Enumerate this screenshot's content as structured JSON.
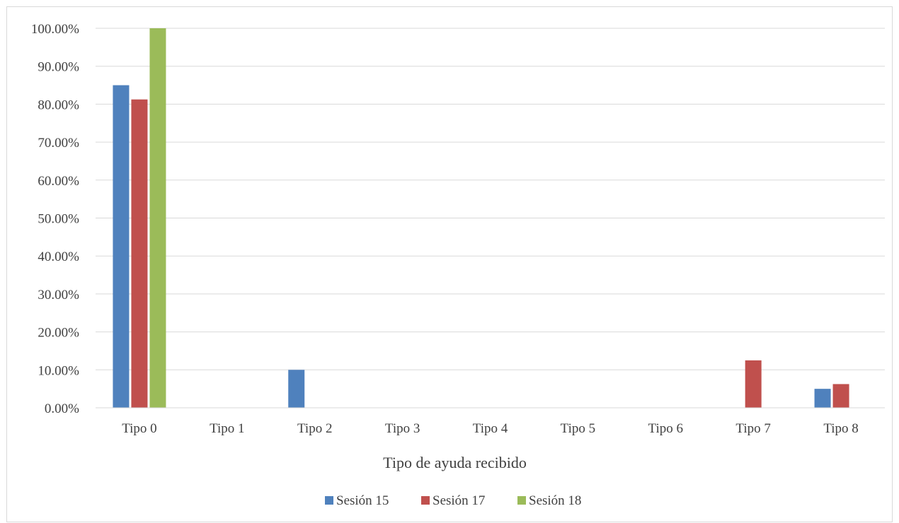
{
  "chart_data": {
    "type": "bar",
    "title": "",
    "xlabel": "Tipo de ayuda recibido",
    "ylabel": "",
    "categories": [
      "Tipo 0",
      "Tipo 1",
      "Tipo 2",
      "Tipo 3",
      "Tipo 4",
      "Tipo 5",
      "Tipo 6",
      "Tipo 7",
      "Tipo 8"
    ],
    "series": [
      {
        "name": "Sesión 15",
        "color": "#4f81bd",
        "values": [
          0.85,
          0,
          0.1,
          0,
          0,
          0,
          0,
          0,
          0.05
        ]
      },
      {
        "name": "Sesión 17",
        "color": "#c0504d",
        "values": [
          0.8125,
          0,
          0,
          0,
          0,
          0,
          0,
          0.125,
          0.0625
        ]
      },
      {
        "name": "Sesión 18",
        "color": "#9bbb59",
        "values": [
          1.0,
          0,
          0,
          0,
          0,
          0,
          0,
          0,
          0
        ]
      }
    ],
    "ylim": [
      0,
      1
    ],
    "yticks": [
      0,
      0.1,
      0.2,
      0.3,
      0.4,
      0.5,
      0.6,
      0.7,
      0.8,
      0.9,
      1.0
    ],
    "ytick_labels": [
      "0.00%",
      "10.00%",
      "20.00%",
      "30.00%",
      "40.00%",
      "50.00%",
      "60.00%",
      "70.00%",
      "80.00%",
      "90.00%",
      "100.00%"
    ],
    "grid": true,
    "legend_position": "bottom"
  }
}
